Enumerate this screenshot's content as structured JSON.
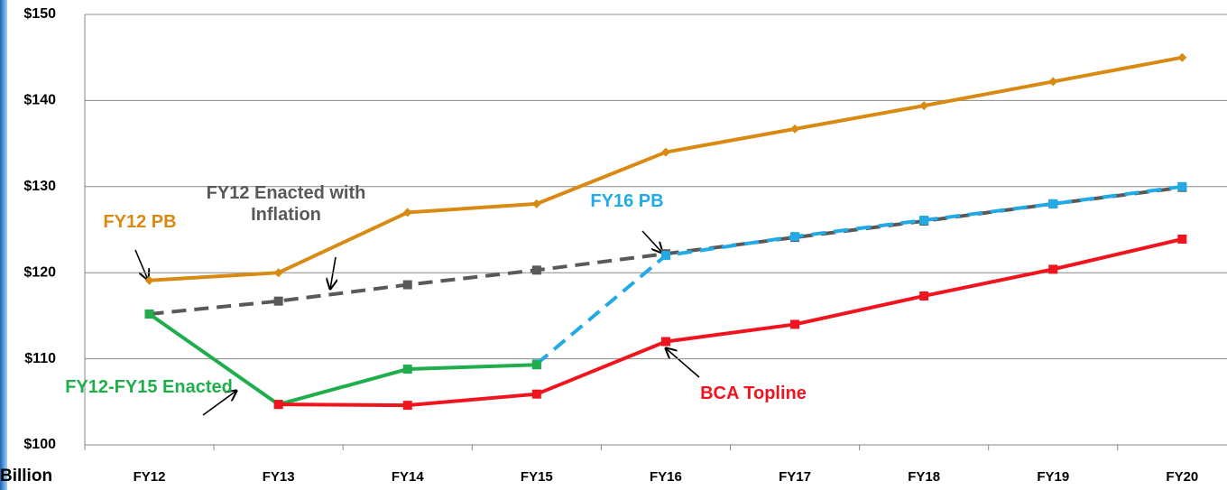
{
  "chart_data": {
    "type": "line",
    "y_unit_label": "Billion",
    "categories": [
      "FY12",
      "FY13",
      "FY14",
      "FY15",
      "FY16",
      "FY17",
      "FY18",
      "FY19",
      "FY20"
    ],
    "ylim": [
      100,
      150
    ],
    "yticks": [
      {
        "value": 100,
        "label": "$100"
      },
      {
        "value": 110,
        "label": "$110"
      },
      {
        "value": 120,
        "label": "$120"
      },
      {
        "value": 130,
        "label": "$130"
      },
      {
        "value": 140,
        "label": "$140"
      },
      {
        "value": 150,
        "label": "$150"
      }
    ],
    "grid": true,
    "series": [
      {
        "name": "FY12 PB",
        "color": "#d98a12",
        "marker": "diamond",
        "dashed": false,
        "values": [
          119.1,
          120,
          127,
          128,
          134,
          136.7,
          139.4,
          142.2,
          145
        ]
      },
      {
        "name": "FY12 Enacted with Inflation",
        "color": "#595959",
        "marker": "square",
        "dashed": true,
        "values": [
          115.2,
          116.7,
          118.6,
          120.3,
          122.2,
          124.1,
          126.0,
          128.0,
          129.9
        ]
      },
      {
        "name": "FY16 PB",
        "color": "#22aae6",
        "marker": "square",
        "dashed": true,
        "values": [
          null,
          null,
          null,
          109.4,
          122,
          124.2,
          126.1,
          128,
          130
        ]
      },
      {
        "name": "FY12-FY15 Enacted",
        "color": "#1fae4b",
        "marker": "square",
        "dashed": false,
        "values": [
          115.2,
          104.7,
          108.8,
          109.3,
          null,
          null,
          null,
          null,
          null
        ]
      },
      {
        "name": "BCA Topline",
        "color": "#f0141e",
        "marker": "square",
        "dashed": false,
        "values": [
          null,
          104.7,
          104.6,
          105.9,
          112,
          114,
          117.3,
          120.4,
          123.9
        ]
      }
    ]
  }
}
